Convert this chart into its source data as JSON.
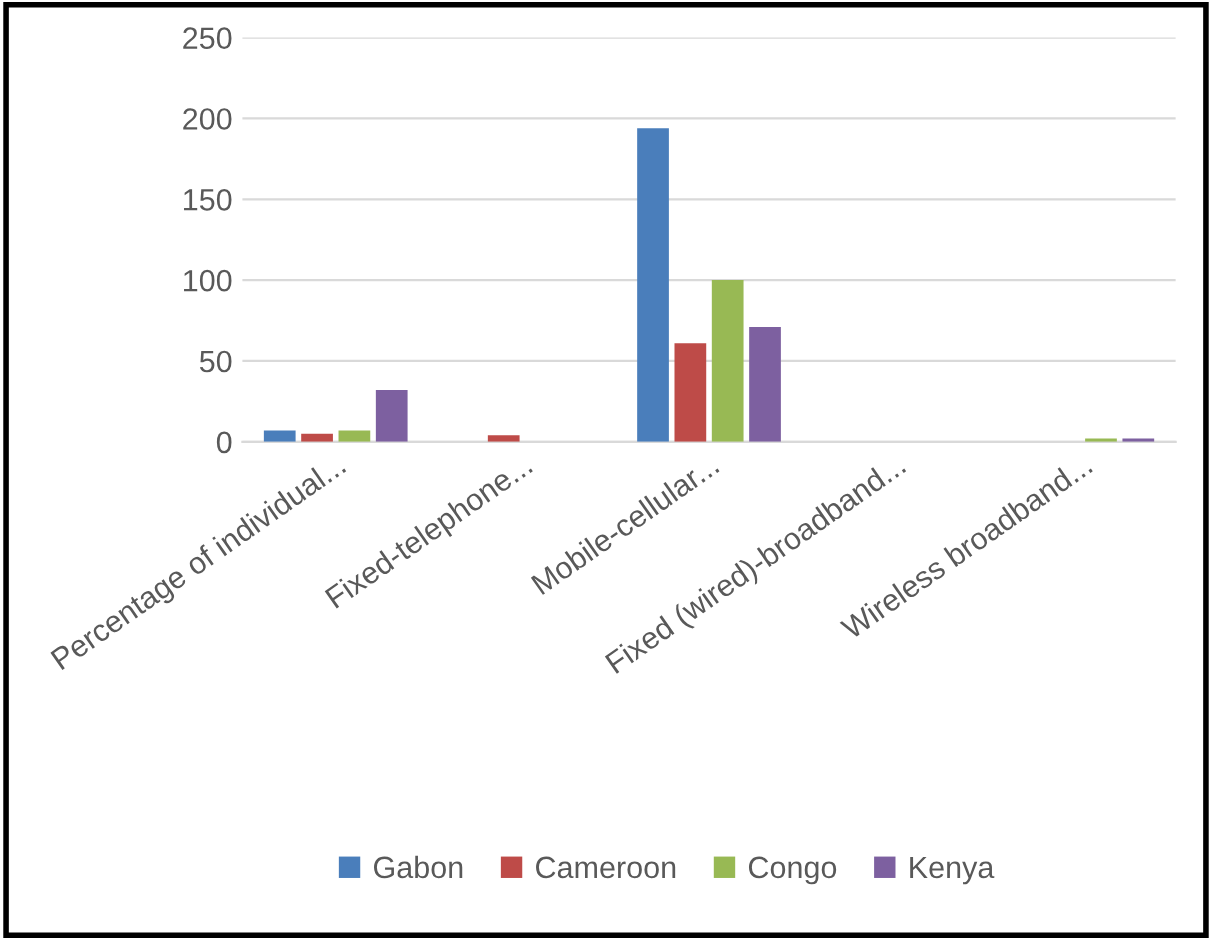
{
  "chart_data": {
    "type": "bar",
    "categories": [
      "Percentage of individual...",
      "Fixed-telephone...",
      "Mobile-cellular...",
      "Fixed (wired)-broadband...",
      "Wireless broadband..."
    ],
    "series": [
      {
        "name": "Gabon",
        "color": "#4a7ebb",
        "values": [
          7,
          0,
          194,
          0,
          0
        ]
      },
      {
        "name": "Cameroon",
        "color": "#be4b48",
        "values": [
          5,
          4,
          61,
          0,
          0
        ]
      },
      {
        "name": "Congo",
        "color": "#98b954",
        "values": [
          7,
          0,
          100,
          0,
          2
        ]
      },
      {
        "name": "Kenya",
        "color": "#7d60a0",
        "values": [
          32,
          0,
          71,
          0,
          2
        ]
      }
    ],
    "ylim": [
      0,
      250
    ],
    "yticks": [
      0,
      50,
      100,
      150,
      200,
      250
    ],
    "grid": "y",
    "legend": "bottom"
  }
}
